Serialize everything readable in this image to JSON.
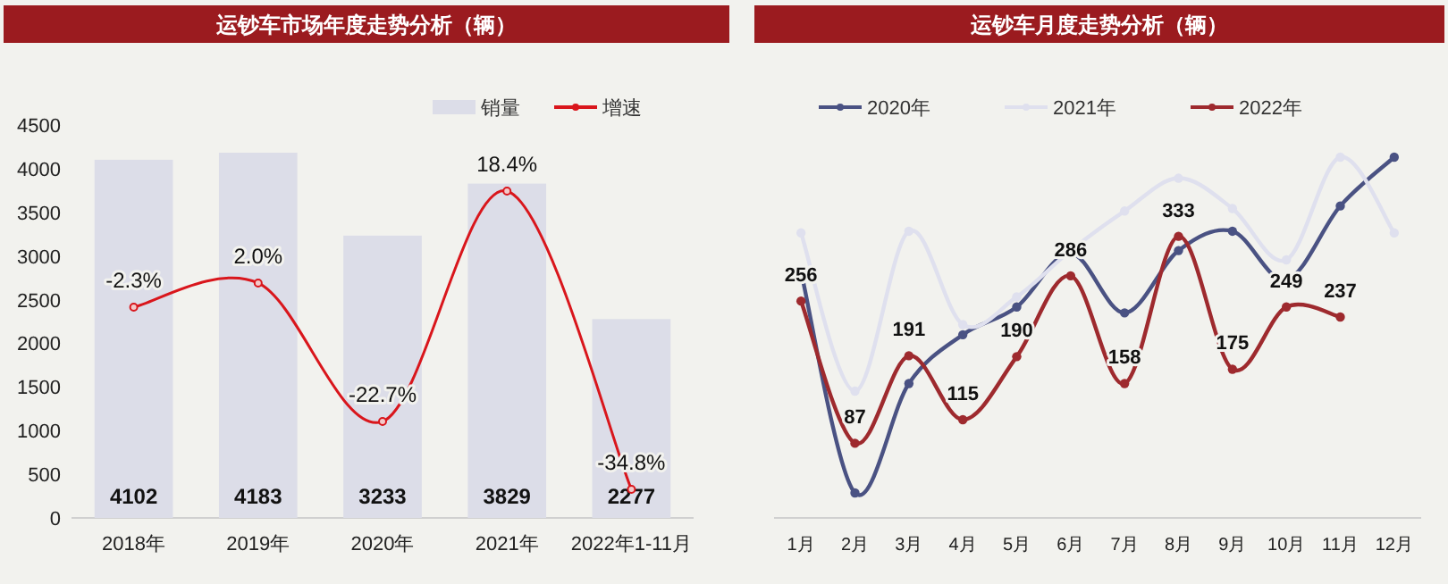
{
  "chart_data": [
    {
      "type": "bar",
      "title": "运钞车市场年度走势分析（辆）",
      "categories": [
        "2018年",
        "2019年",
        "2020年",
        "2021年",
        "2022年1-11月"
      ],
      "series": [
        {
          "name": "销量",
          "color": "#dcdde8",
          "values": [
            4102,
            4183,
            3233,
            3829,
            2277
          ],
          "value_labels": [
            "4102",
            "4183",
            "3233",
            "3829",
            "2277"
          ]
        },
        {
          "name": "增速",
          "type": "line",
          "axis": "y2",
          "color": "#d9161c",
          "marker": "circle",
          "values": [
            -2.3,
            2.0,
            -22.7,
            18.4,
            -34.8
          ],
          "value_labels": [
            "-2.3%",
            "2.0%",
            "-22.7%",
            "18.4%",
            "-34.8%"
          ]
        }
      ],
      "ylim": [
        0,
        4500
      ],
      "yticks": [
        0,
        500,
        1000,
        1500,
        2000,
        2500,
        3000,
        3500,
        4000,
        4500
      ],
      "tick_labels": "xy",
      "legend": "top right"
    },
    {
      "type": "line",
      "title": "运钞车月度走势分析（辆）",
      "categories": [
        "1月",
        "2月",
        "3月",
        "4月",
        "5月",
        "6月",
        "7月",
        "8月",
        "9月",
        "10月",
        "11月",
        "12月"
      ],
      "series": [
        {
          "name": "2020年",
          "color": "#4a5283",
          "values": [
            291,
            28,
            158,
            216,
            249,
            313,
            242,
            316,
            339,
            281,
            369,
            427
          ]
        },
        {
          "name": "2021年",
          "color": "#dfe0ee",
          "values": [
            337,
            149,
            339,
            228,
            261,
            316,
            363,
            402,
            366,
            305,
            427,
            337
          ]
        },
        {
          "name": "2022年",
          "color": "#9e2a2e",
          "values": [
            256,
            87,
            191,
            115,
            190,
            286,
            158,
            333,
            175,
            249,
            237,
            null
          ],
          "value_labels": [
            "256",
            "87",
            "191",
            "115",
            "190",
            "286",
            "158",
            "333",
            "175",
            "249",
            "237",
            null
          ]
        }
      ],
      "tick_labels": "x",
      "legend": "top",
      "marker": "circle"
    }
  ]
}
